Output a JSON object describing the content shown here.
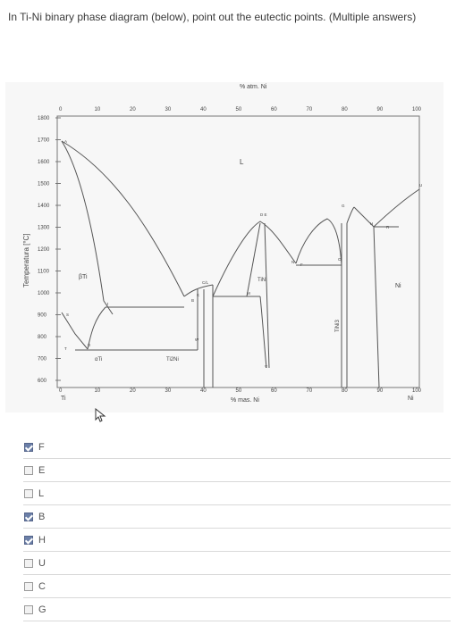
{
  "question": {
    "text": "In Ti-Ni binary phase diagram (below), point out the eutectic points. (Multiple answers)"
  },
  "diagram": {
    "top_axis_label": "% atm. Ni",
    "bottom_axis_label": "% mas. Ni",
    "y_axis_label": "Temperatura [°C]",
    "top_ticks": [
      "0",
      "10",
      "20",
      "30",
      "40",
      "50",
      "60",
      "70",
      "80",
      "90",
      "100"
    ],
    "bottom_ticks": [
      "0",
      "10",
      "20",
      "30",
      "40",
      "50",
      "60",
      "70",
      "80",
      "90",
      "100"
    ],
    "bottom_left_element": "Ti",
    "bottom_right_element": "Ni",
    "y_ticks": [
      "1800",
      "1700",
      "1600",
      "1500",
      "1400",
      "1300",
      "1200",
      "1100",
      "1000",
      "900",
      "800",
      "700",
      "600"
    ],
    "region_labels": {
      "liquid": "L",
      "beta": "βTi",
      "alpha": "αTi",
      "ti2ni": "Ti2Ni",
      "tini": "TiNi",
      "tini3": "TiNi3",
      "ni": "Ni"
    },
    "point_labels": [
      "A",
      "J",
      "S",
      "T",
      "D",
      "B",
      "K",
      "C/L",
      "M",
      "W",
      "V",
      "D E",
      "N",
      "F",
      "O",
      "G",
      "H",
      "R",
      "U"
    ]
  },
  "options": [
    {
      "label": "F",
      "checked": true
    },
    {
      "label": "E",
      "checked": false
    },
    {
      "label": "L",
      "checked": false
    },
    {
      "label": "B",
      "checked": true
    },
    {
      "label": "H",
      "checked": true
    },
    {
      "label": "U",
      "checked": false
    },
    {
      "label": "C",
      "checked": false
    },
    {
      "label": "G",
      "checked": false
    }
  ],
  "colors": {
    "checked_fill": "#6b7fa8",
    "unchecked_fill": "#f2f2f2",
    "line": "#555555"
  }
}
